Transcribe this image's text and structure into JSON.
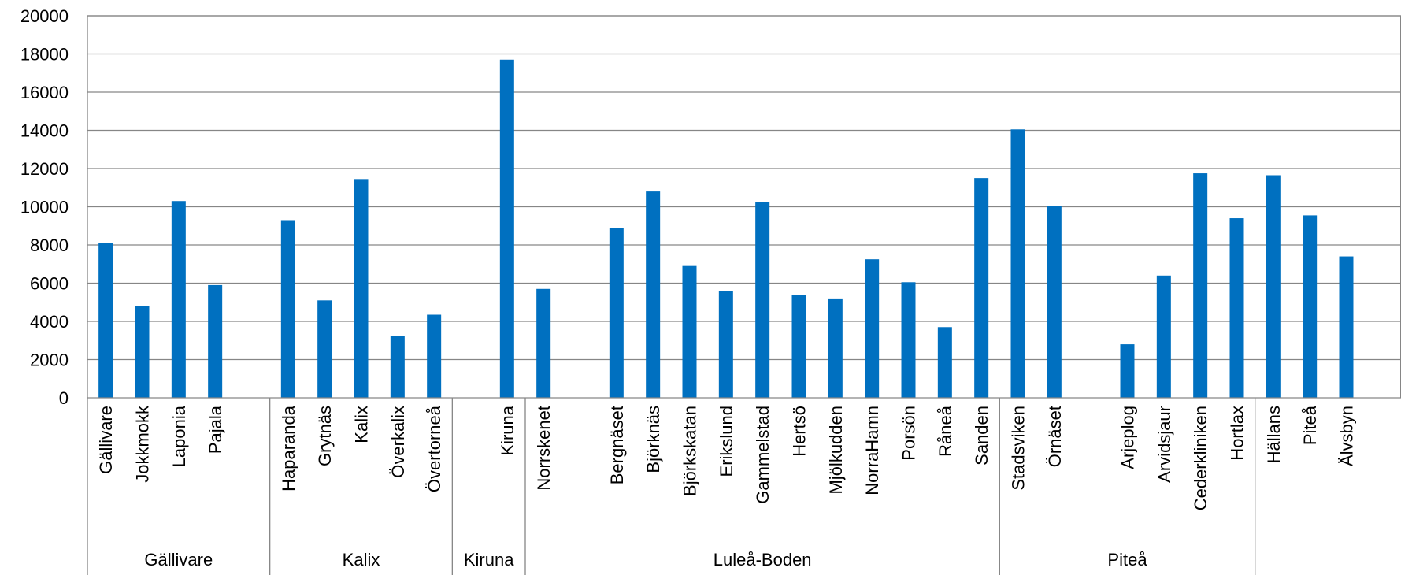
{
  "chart_data": {
    "type": "bar",
    "groups": [
      {
        "label": "Gällivare",
        "categories": [
          "Gällivare",
          "Jokkmokk",
          "Laponia",
          "Pajala"
        ],
        "values": [
          8100,
          4800,
          10300,
          5900
        ]
      },
      {
        "label": "Kalix",
        "categories": [
          "Haparanda",
          "Grytnäs",
          "Kalix",
          "Överkalix",
          "Övertorneå"
        ],
        "values": [
          9300,
          5100,
          11450,
          3250,
          4350
        ]
      },
      {
        "label": "Kiruna",
        "categories": [
          "Kiruna",
          "Norrskenet"
        ],
        "values": [
          17700,
          5700
        ]
      },
      {
        "label": "Luleå-Boden",
        "categories": [
          "Bergnäset",
          "Björknäs",
          "Björkskatan",
          "Erikslund",
          "Gammelstad",
          "Hertsö",
          "Mjölkudden",
          "NorraHamn",
          "Porsön",
          "Råneå",
          "Sanden",
          "Stadsviken",
          "Örnäset"
        ],
        "values": [
          8900,
          10800,
          6900,
          5600,
          10250,
          5400,
          5200,
          7250,
          6050,
          3700,
          11500,
          14050,
          10050
        ]
      },
      {
        "label": "Piteå",
        "categories": [
          "Arjeplog",
          "Arvidsjaur",
          "Cederkliniken",
          "Hortlax",
          "Hällans",
          "Piteå",
          "Älvsbyn"
        ],
        "values": [
          2800,
          6400,
          11750,
          9400,
          11650,
          9550,
          7400
        ]
      }
    ],
    "ylim": [
      0,
      20000
    ],
    "yticks": [
      0,
      2000,
      4000,
      6000,
      8000,
      10000,
      12000,
      14000,
      16000,
      18000,
      20000
    ],
    "grid": true,
    "bar_color": "#0070C0",
    "grid_color": "#868686",
    "title": "",
    "xlabel": "",
    "ylabel": ""
  }
}
